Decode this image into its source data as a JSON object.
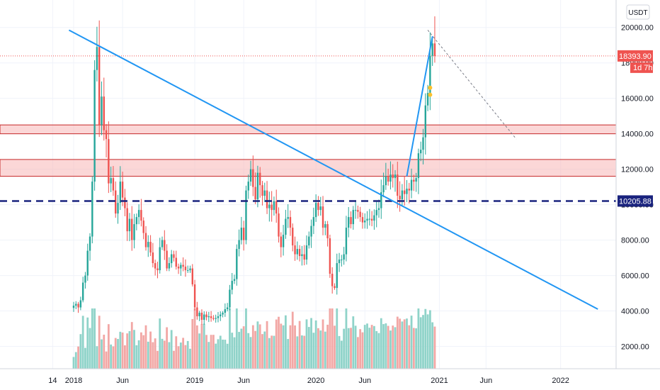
{
  "currency_button": "USDT",
  "colors": {
    "up": "#26a69a",
    "down": "#ef5350",
    "vol_up": "#8fd3c9",
    "vol_down": "#f2a7a5",
    "trendline": "#2196f3",
    "support": "#1a237e",
    "zone_fill": "#f7b6b6",
    "zone_border": "#c62828",
    "last_price_bg": "#ef5350",
    "support_bg": "#1a237e"
  },
  "chart_data": {
    "type": "candlestick",
    "y_ticks": [
      "2000.00",
      "4000.00",
      "6000.00",
      "8000.00",
      "10000.00",
      "12000.00",
      "14000.00",
      "16000.00",
      "18000.00",
      "20000.00"
    ],
    "y_tick_values": [
      2000,
      4000,
      6000,
      8000,
      10000,
      12000,
      14000,
      16000,
      18000,
      20000
    ],
    "ylim": [
      740,
      21550
    ],
    "x_ticks": [
      "14",
      "2018",
      "Jun",
      "2019",
      "Jun",
      "2020",
      "Jun",
      "2021",
      "Jun",
      "2022"
    ],
    "x_tick_weeks": [
      -1,
      8,
      29,
      60,
      81,
      112,
      133,
      165,
      185,
      217
    ],
    "last_price": {
      "value": 18393.9,
      "label": "18393.90",
      "countdown": "1d 7h"
    },
    "support_level": {
      "value": 10205.88,
      "label": "10205.88"
    },
    "zones": [
      {
        "low": 14000,
        "high": 14500
      },
      {
        "low": 11600,
        "high": 12550
      }
    ],
    "trendlines": [
      {
        "from": {
          "week": 6,
          "price": 19850
        },
        "to": {
          "week": 233,
          "price": 4100
        }
      },
      {
        "from": {
          "week": 151,
          "price": 11600
        },
        "to": {
          "week": 162,
          "price": 19500
        }
      }
    ],
    "projection": {
      "from": {
        "week": 160,
        "price": 19850
      },
      "to": {
        "week": 198,
        "price": 13700
      }
    },
    "weekly_close": [
      4300,
      4400,
      4200,
      4600,
      5600,
      6000,
      7400,
      8200,
      11300,
      17600,
      18900,
      14500,
      16100,
      14200,
      13700,
      11200,
      11500,
      10800,
      9500,
      10100,
      11300,
      10400,
      9800,
      8500,
      9200,
      8000,
      8900,
      9300,
      9700,
      9100,
      8400,
      7600,
      7900,
      7300,
      6700,
      6400,
      6300,
      7600,
      8000,
      7400,
      6400,
      6700,
      7200,
      7000,
      6500,
      6400,
      6600,
      6500,
      6300,
      6300,
      6400,
      5500,
      4200,
      3700,
      3900,
      3500,
      3800,
      3650,
      3700,
      3600,
      3550,
      3600,
      3700,
      3800,
      3900,
      4100,
      4200,
      5200,
      5700,
      5800,
      7500,
      8000,
      8700,
      8000,
      10800,
      11300,
      12000,
      11000,
      10300,
      11800,
      11100,
      10500,
      10800,
      9800,
      10000,
      9700,
      10200,
      9500,
      8200,
      7600,
      8300,
      9200,
      9300,
      8700,
      7700,
      7200,
      7500,
      7100,
      7200,
      6900,
      7700,
      8200,
      8800,
      9300,
      10100,
      9700,
      9900,
      8700,
      8900,
      8100,
      6100,
      5400,
      5300,
      6700,
      6900,
      6900,
      7200,
      8700,
      9300,
      8900,
      9700,
      9700,
      9600,
      9300,
      9000,
      9100,
      9200,
      9200,
      9100,
      9400,
      9700,
      9800,
      10700,
      11100,
      11600,
      11300,
      11700,
      11500,
      11700,
      10500,
      10300,
      10800,
      10600,
      10900,
      10800,
      11400,
      11300,
      11500,
      12900,
      13100,
      13800,
      15600,
      16300,
      18400,
      19100,
      18400
    ]
  }
}
